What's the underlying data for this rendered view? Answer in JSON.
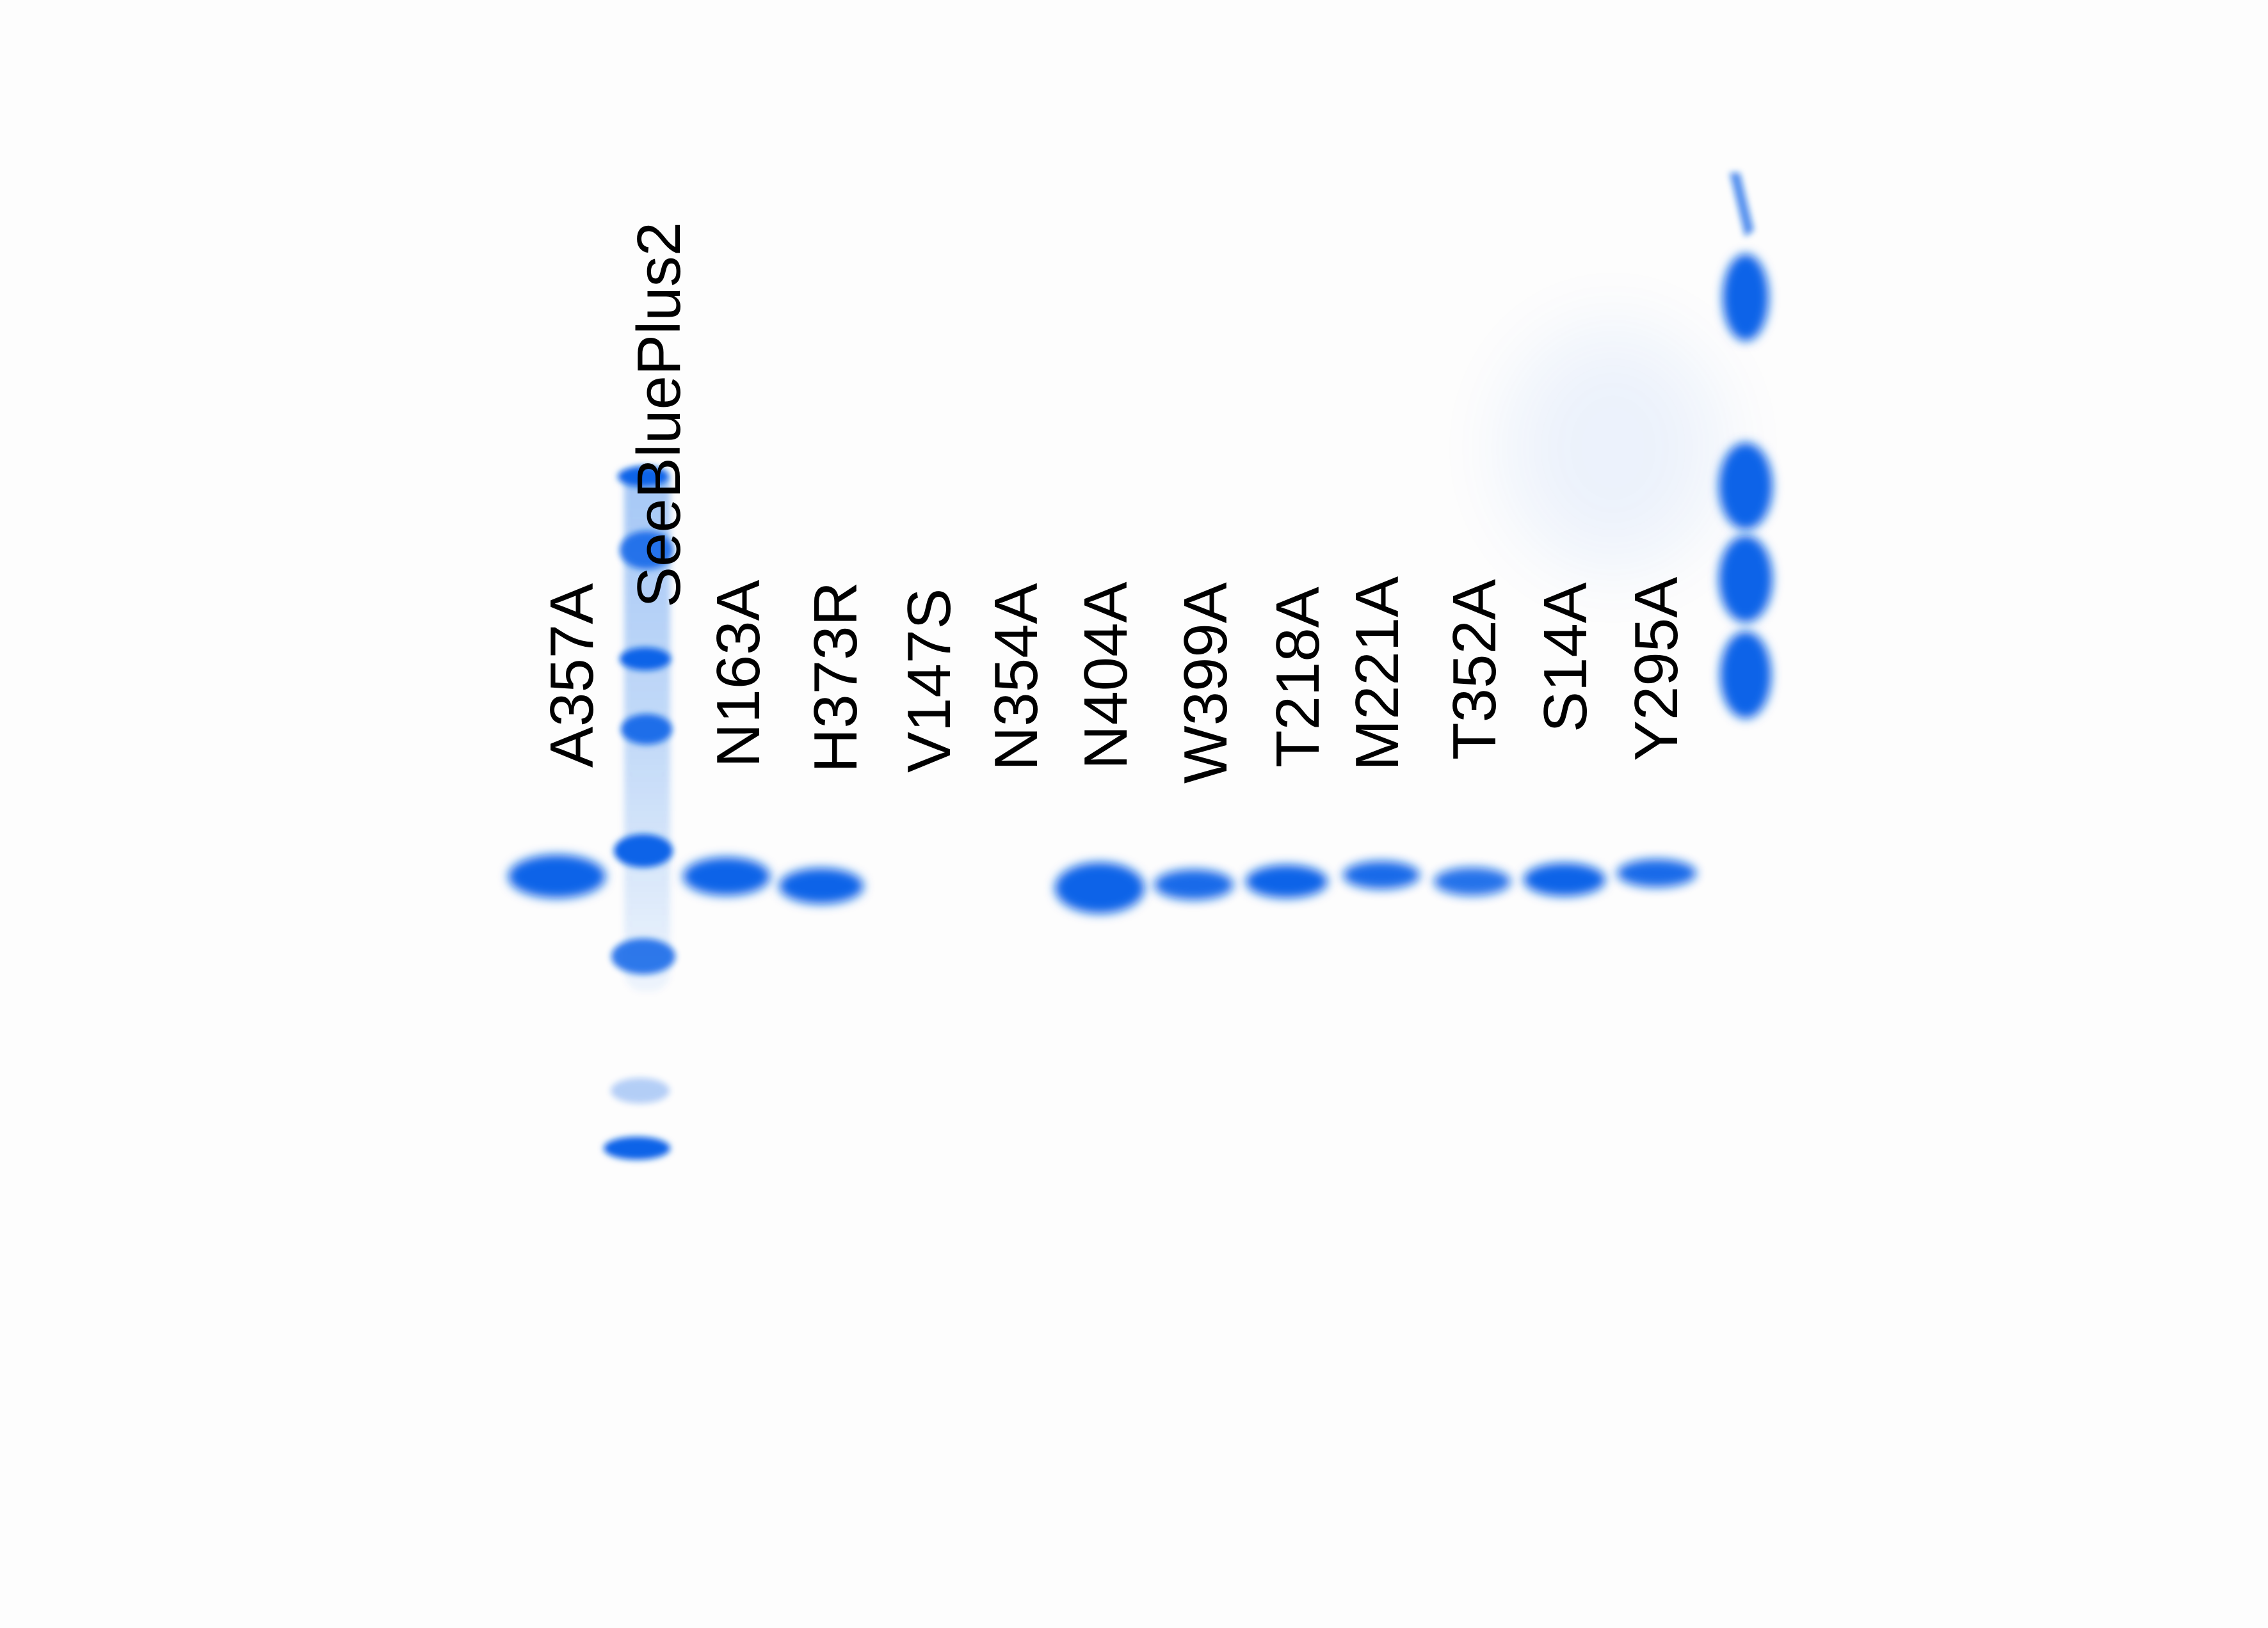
{
  "gel": {
    "stain_color": "#0a63e8",
    "background_color": "#fdfdfd",
    "ladder_name": "SeeBluePlus2",
    "lane_labels": [
      "A357A",
      "SeeBluePlus2",
      "N163A",
      "H373R",
      "V147S",
      "N354A",
      "N404A",
      "W399A",
      "T218A",
      "M221A",
      "T352A",
      "S14A",
      "Y295A"
    ]
  }
}
